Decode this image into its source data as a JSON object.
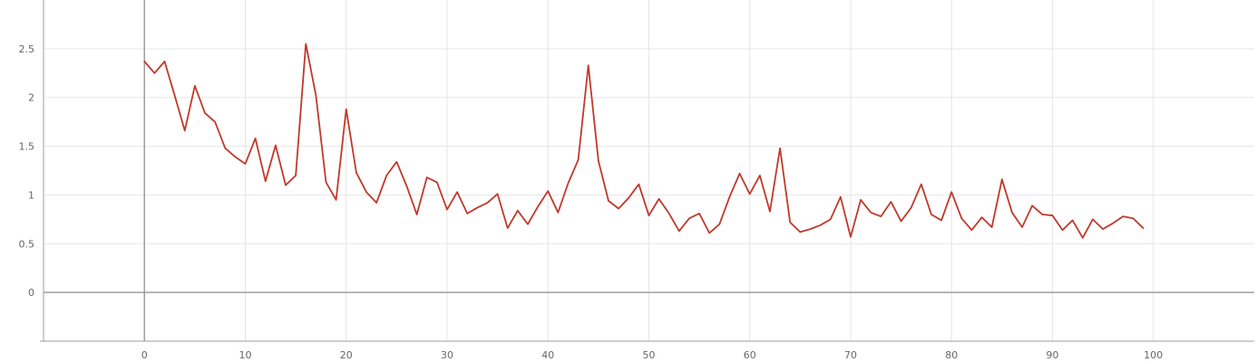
{
  "chart_data": {
    "type": "line",
    "title": "",
    "xlabel": "",
    "ylabel": "",
    "xlim": [
      -10,
      110
    ],
    "ylim": [
      -0.5,
      3.0
    ],
    "x_ticks": [
      0,
      10,
      20,
      30,
      40,
      50,
      60,
      70,
      80,
      90,
      100
    ],
    "x_tick_labels": [
      "0",
      "10",
      "20",
      "30",
      "40",
      "50",
      "60",
      "70",
      "80",
      "90",
      "100"
    ],
    "y_ticks": [
      0,
      0.5,
      1,
      1.5,
      2,
      2.5
    ],
    "y_tick_labels": [
      "0",
      "0.5",
      "1",
      "1.5",
      "2",
      "2.5"
    ],
    "grid": true,
    "legend": "none",
    "line_color": "#c0392b",
    "series": [
      {
        "x": [
          0,
          1,
          2,
          3,
          4,
          5,
          6,
          7,
          8,
          9,
          10,
          11,
          12,
          13,
          14,
          15,
          16,
          17,
          18,
          19,
          20,
          21,
          22,
          23,
          24,
          25,
          26,
          27,
          28,
          29,
          30,
          31,
          32,
          33,
          34,
          35,
          36,
          37,
          38,
          39,
          40,
          41,
          42,
          43,
          44,
          45,
          46,
          47,
          48,
          49,
          50,
          51,
          52,
          53,
          54,
          55,
          56,
          57,
          58,
          59,
          60,
          61,
          62,
          63,
          64,
          65,
          66,
          67,
          68,
          69,
          70,
          71,
          72,
          73,
          74,
          75,
          76,
          77,
          78,
          79,
          80,
          81,
          82,
          83,
          84,
          85,
          86,
          87,
          88,
          89,
          90,
          91,
          92,
          93,
          94,
          95,
          96,
          97,
          98,
          99
        ],
        "values": [
          2.37,
          2.25,
          2.37,
          2.02,
          1.66,
          2.12,
          1.84,
          1.75,
          1.48,
          1.39,
          1.32,
          1.58,
          1.14,
          1.51,
          1.1,
          1.2,
          2.55,
          2.02,
          1.13,
          0.95,
          1.88,
          1.23,
          1.03,
          0.92,
          1.2,
          1.34,
          1.09,
          0.8,
          1.18,
          1.13,
          0.85,
          1.03,
          0.81,
          0.87,
          0.92,
          1.01,
          0.66,
          0.84,
          0.7,
          0.88,
          1.04,
          0.82,
          1.12,
          1.36,
          2.33,
          1.35,
          0.94,
          0.86,
          0.97,
          1.11,
          0.79,
          0.96,
          0.81,
          0.63,
          0.76,
          0.81,
          0.61,
          0.7,
          0.98,
          1.22,
          1.01,
          1.2,
          0.83,
          1.48,
          0.72,
          0.62,
          0.65,
          0.69,
          0.75,
          0.98,
          0.57,
          0.95,
          0.82,
          0.78,
          0.93,
          0.73,
          0.87,
          1.11,
          0.8,
          0.74,
          1.03,
          0.76,
          0.64,
          0.77,
          0.67,
          1.16,
          0.82,
          0.67,
          0.89,
          0.8,
          0.79,
          0.64,
          0.74,
          0.56,
          0.75,
          0.65,
          0.71,
          0.78,
          0.76,
          0.66
        ]
      }
    ]
  }
}
